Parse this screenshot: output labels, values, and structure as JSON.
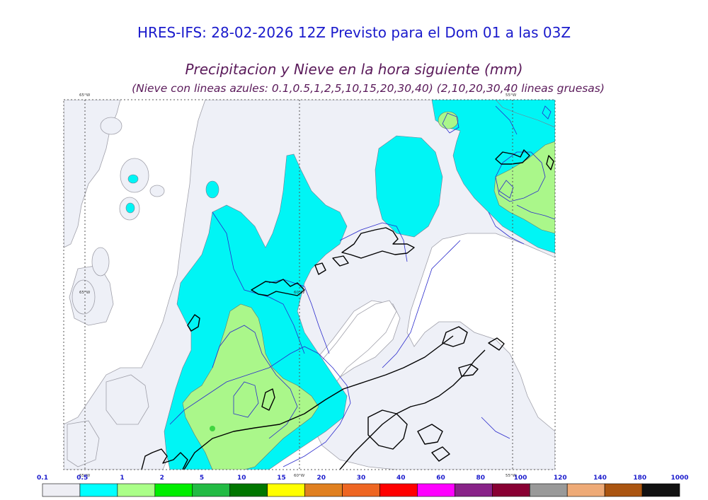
{
  "header": {
    "title": "HRES-IFS: 28-02-2026 12Z Previsto para el Dom 01 a las 03Z",
    "subtitle": "Precipitacion y Nieve en la hora siguiente (mm)",
    "note": "(Nieve con lineas azules: 0.1,0.5,1,2,5,10,15,20,30,40)  (2,10,20,30,40 lineas gruesas)"
  },
  "map": {
    "longitude_labels": [
      "65°W",
      "60°W",
      "55°W"
    ],
    "colors": {
      "background": "#ffffff",
      "light_precip": "#eef0f7",
      "cyan": "#00f5f5",
      "light_green": "#aaf78a",
      "green": "#40d540",
      "coast": "#000000",
      "snow_contour": "#2a2acc",
      "grid": "#555555"
    }
  },
  "legend": {
    "thresholds": [
      "0.1",
      "0.5",
      "1",
      "2",
      "5",
      "10",
      "15",
      "20",
      "30",
      "40",
      "60",
      "80",
      "100",
      "120",
      "140",
      "180",
      "1000"
    ],
    "colors": [
      "#eeeef4",
      "#00ffff",
      "#aaff88",
      "#00ee00",
      "#22bb44",
      "#007700",
      "#ffff00",
      "#e08020",
      "#ee6622",
      "#ff0000",
      "#ff00ff",
      "#882288",
      "#880033",
      "#999999",
      "#eeaa77",
      "#aa5511",
      "#111111"
    ]
  }
}
